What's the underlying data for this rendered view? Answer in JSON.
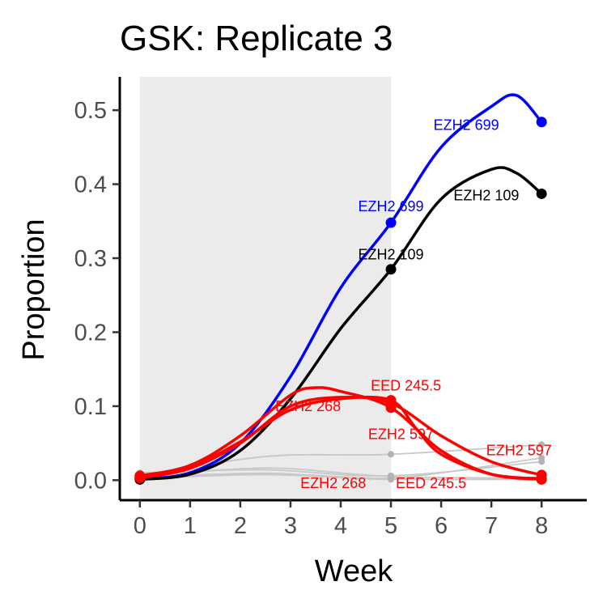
{
  "chart_data": {
    "type": "line",
    "title": "GSK: Replicate 3",
    "xlabel": "Week",
    "ylabel": "Proportion",
    "xlim": [
      -0.4,
      8.9
    ],
    "ylim": [
      -0.027,
      0.545
    ],
    "x_ticks": [
      "0",
      "1",
      "2",
      "3",
      "4",
      "5",
      "6",
      "7",
      "8"
    ],
    "x_tick_values": [
      0,
      1,
      2,
      3,
      4,
      5,
      6,
      7,
      8
    ],
    "y_ticks": [
      "0.0",
      "0.1",
      "0.2",
      "0.3",
      "0.4",
      "0.5"
    ],
    "y_tick_values": [
      0,
      0.1,
      0.2,
      0.3,
      0.4,
      0.5
    ],
    "shaded_region": {
      "x": [
        0,
        5
      ],
      "color": "#ebebeb"
    },
    "grid": false,
    "highlight_series": [
      {
        "name": "EZH2 699",
        "color": "#0000ff",
        "points": [
          [
            0,
            0.002
          ],
          [
            5,
            0.348
          ],
          [
            8,
            0.484
          ]
        ],
        "curve": [
          [
            0,
            0.002
          ],
          [
            1,
            0.01
          ],
          [
            2,
            0.05
          ],
          [
            3,
            0.14
          ],
          [
            4,
            0.26
          ],
          [
            5,
            0.348
          ],
          [
            6,
            0.45
          ],
          [
            7,
            0.505
          ],
          [
            7.5,
            0.52
          ],
          [
            8,
            0.484
          ]
        ]
      },
      {
        "name": "EZH2 109",
        "color": "#000000",
        "points": [
          [
            0,
            0.001
          ],
          [
            5,
            0.285
          ],
          [
            8,
            0.387
          ]
        ],
        "curve": [
          [
            0,
            0.001
          ],
          [
            1,
            0.008
          ],
          [
            2,
            0.04
          ],
          [
            3,
            0.11
          ],
          [
            4,
            0.205
          ],
          [
            5,
            0.285
          ],
          [
            6,
            0.38
          ],
          [
            7,
            0.42
          ],
          [
            7.5,
            0.415
          ],
          [
            8,
            0.387
          ]
        ]
      },
      {
        "name": "EZH2 268",
        "color": "#ff0000",
        "points": [
          [
            0,
            0.006
          ],
          [
            5,
            0.098
          ],
          [
            8,
            0.001
          ]
        ],
        "curve": [
          [
            0,
            0.006
          ],
          [
            1,
            0.02
          ],
          [
            2,
            0.06
          ],
          [
            3,
            0.115
          ],
          [
            3.5,
            0.125
          ],
          [
            4,
            0.12
          ],
          [
            5,
            0.098
          ],
          [
            6,
            0.04
          ],
          [
            7,
            0.008
          ],
          [
            8,
            0.001
          ]
        ]
      },
      {
        "name": "EED 245.5",
        "color": "#ff0000",
        "points": [
          [
            0,
            0.004
          ],
          [
            5,
            0.108
          ],
          [
            8,
            0.002
          ]
        ],
        "curve": [
          [
            0,
            0.004
          ],
          [
            1,
            0.018
          ],
          [
            2,
            0.052
          ],
          [
            3,
            0.095
          ],
          [
            4,
            0.11
          ],
          [
            5,
            0.108
          ],
          [
            5.5,
            0.07
          ],
          [
            6,
            0.035
          ],
          [
            7,
            0.008
          ],
          [
            8,
            0.002
          ]
        ]
      },
      {
        "name": "EZH2 597",
        "color": "#ff0000",
        "points": [
          [
            0,
            0.003
          ],
          [
            5,
            0.104
          ],
          [
            8,
            0.007
          ]
        ],
        "curve": [
          [
            0,
            0.003
          ],
          [
            1,
            0.016
          ],
          [
            2,
            0.05
          ],
          [
            3,
            0.1
          ],
          [
            4,
            0.112
          ],
          [
            5,
            0.104
          ],
          [
            6,
            0.06
          ],
          [
            7,
            0.025
          ],
          [
            8,
            0.007
          ]
        ]
      }
    ],
    "background_series": [
      {
        "color": "#c8c8c8",
        "points": [
          [
            0,
            0.005
          ],
          [
            5,
            0.035
          ],
          [
            8,
            0.048
          ]
        ]
      },
      {
        "color": "#c8c8c8",
        "points": [
          [
            0,
            0.01
          ],
          [
            5,
            0.006
          ],
          [
            8,
            0.025
          ]
        ]
      },
      {
        "color": "#c8c8c8",
        "points": [
          [
            0,
            0.004
          ],
          [
            5,
            0.003
          ],
          [
            8,
            0.03
          ]
        ]
      },
      {
        "color": "#c8c8c8",
        "points": [
          [
            0,
            0.003
          ],
          [
            5,
            0.002
          ],
          [
            8,
            0.001
          ]
        ]
      },
      {
        "color": "#c8c8c8",
        "points": [
          [
            0,
            0.002
          ],
          [
            5,
            0.001
          ],
          [
            8,
            0.002
          ]
        ]
      },
      {
        "color": "#c8c8c8",
        "points": [
          [
            0,
            0.004
          ],
          [
            5,
            0.005
          ],
          [
            8,
            0.003
          ]
        ]
      }
    ],
    "annotations": [
      {
        "text": "EZH2 699",
        "color": "#0000ff",
        "x": 6.5,
        "y": 0.48
      },
      {
        "text": "EZH2 699",
        "color": "#0000ff",
        "x": 5.0,
        "y": 0.37
      },
      {
        "text": "EZH2 109",
        "color": "#000000",
        "x": 6.9,
        "y": 0.385
      },
      {
        "text": "EZH2 109",
        "color": "#000000",
        "x": 5.0,
        "y": 0.305
      },
      {
        "text": "EED 245.5",
        "color": "#ff0000",
        "x": 5.3,
        "y": 0.128
      },
      {
        "text": "EZH2 268",
        "color": "#ff0000",
        "x": 3.35,
        "y": 0.1
      },
      {
        "text": "EZH2 597",
        "color": "#ff0000",
        "x": 5.2,
        "y": 0.062
      },
      {
        "text": "EZH2 597",
        "color": "#ff0000",
        "x": 7.55,
        "y": 0.04
      },
      {
        "text": "EZH2 268",
        "color": "#ff0000",
        "x": 3.85,
        "y": -0.004
      },
      {
        "text": "EED 245.5",
        "color": "#ff0000",
        "x": 5.8,
        "y": -0.004
      }
    ]
  }
}
